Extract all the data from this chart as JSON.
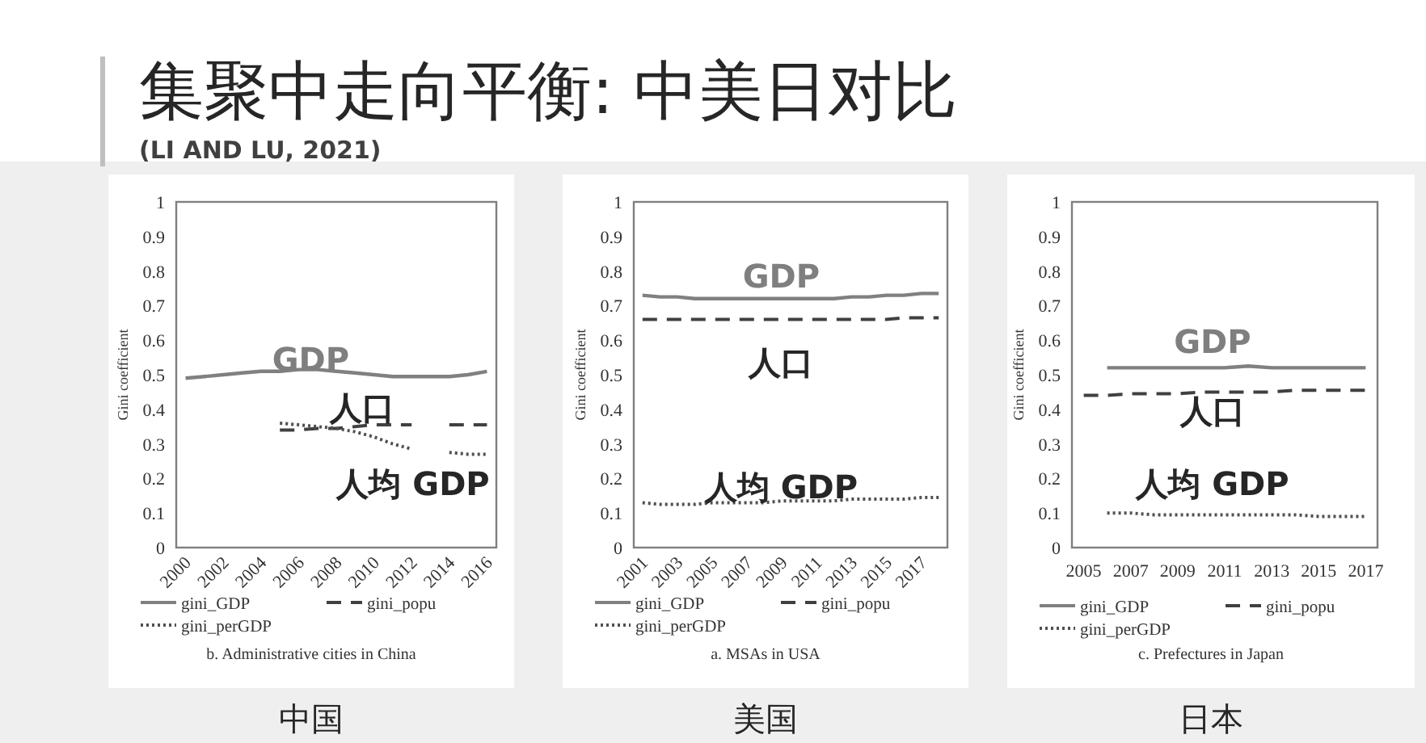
{
  "chart_data": [
    {
      "type": "other",
      "title": "集聚中走向平衡: 中美日对比",
      "subtitle": "(LI AND LU, 2021)"
    },
    {
      "type": "line",
      "title": "中国",
      "ylabel": "Gini coefficient",
      "ylim": [
        0,
        1
      ],
      "yticks": [
        0,
        0.1,
        0.2,
        0.3,
        0.4,
        0.5,
        0.6,
        0.7,
        0.8,
        0.9,
        1
      ],
      "legend": "bottom",
      "categories": [
        "2000",
        null,
        "2002",
        null,
        "2004",
        null,
        "2006",
        null,
        "2008",
        null,
        "2010",
        null,
        "2012",
        null,
        "2014",
        null,
        "2016"
      ],
      "series": [
        {
          "name": "gini_GDP",
          "color": "#808080",
          "line_style": "solid",
          "values": [
            0.49,
            0.495,
            0.5,
            0.505,
            0.51,
            0.51,
            0.515,
            0.515,
            0.51,
            0.505,
            0.5,
            0.495,
            0.495,
            0.495,
            0.495,
            0.5,
            0.51
          ]
        },
        {
          "name": "gini_popu",
          "color": "#404040",
          "line_style": "dashed",
          "values": [
            null,
            null,
            null,
            null,
            null,
            0.34,
            0.34,
            0.345,
            0.345,
            0.35,
            0.355,
            0.355,
            0.355,
            null,
            0.355,
            0.355,
            0.355
          ]
        },
        {
          "name": "gini_perGDP",
          "color": "#505050",
          "line_style": "dotted",
          "values": [
            null,
            null,
            null,
            null,
            null,
            0.36,
            0.355,
            0.35,
            0.345,
            0.335,
            0.32,
            0.3,
            0.285,
            null,
            0.275,
            0.27,
            0.27
          ]
        }
      ],
      "annotations": [
        "GDP",
        "人口",
        "人均 GDP",
        "b. Administrative cities in China"
      ]
    },
    {
      "type": "line",
      "title": "美国",
      "ylabel": "Gini coefficient",
      "ylim": [
        0,
        1
      ],
      "yticks": [
        0,
        0.1,
        0.2,
        0.3,
        0.4,
        0.5,
        0.6,
        0.7,
        0.8,
        0.9,
        1
      ],
      "legend": "bottom",
      "categories": [
        "2001",
        null,
        "2003",
        null,
        "2005",
        null,
        "2007",
        null,
        "2009",
        null,
        "2011",
        null,
        "2013",
        null,
        "2015",
        null,
        "2017",
        null
      ],
      "series": [
        {
          "name": "gini_GDP",
          "color": "#808080",
          "line_style": "solid",
          "values": [
            0.73,
            0.725,
            0.725,
            0.72,
            0.72,
            0.72,
            0.72,
            0.72,
            0.72,
            0.72,
            0.72,
            0.72,
            0.725,
            0.725,
            0.73,
            0.73,
            0.735,
            0.735
          ]
        },
        {
          "name": "gini_popu",
          "color": "#404040",
          "line_style": "dashed",
          "values": [
            0.66,
            0.66,
            0.66,
            0.66,
            0.66,
            0.66,
            0.66,
            0.66,
            0.66,
            0.66,
            0.66,
            0.66,
            0.66,
            0.66,
            0.66,
            0.665,
            0.665,
            0.665
          ]
        },
        {
          "name": "gini_perGDP",
          "color": "#505050",
          "line_style": "dotted",
          "values": [
            0.13,
            0.125,
            0.125,
            0.125,
            0.13,
            0.13,
            0.13,
            0.13,
            0.135,
            0.135,
            0.135,
            0.135,
            0.14,
            0.14,
            0.14,
            0.14,
            0.145,
            0.145
          ]
        }
      ],
      "annotations": [
        "GDP",
        "人口",
        "人均 GDP",
        "a. MSAs in USA"
      ]
    },
    {
      "type": "line",
      "title": "日本",
      "ylabel": "Gini coefficient",
      "ylim": [
        0,
        1
      ],
      "yticks": [
        0,
        0.1,
        0.2,
        0.3,
        0.4,
        0.5,
        0.6,
        0.7,
        0.8,
        0.9,
        1
      ],
      "legend": "bottom",
      "categories": [
        "2005",
        null,
        "2007",
        null,
        "2009",
        null,
        "2011",
        null,
        "2013",
        null,
        "2015",
        null,
        "2017"
      ],
      "series": [
        {
          "name": "gini_GDP",
          "color": "#808080",
          "line_style": "solid",
          "values": [
            null,
            0.52,
            0.52,
            0.52,
            0.52,
            0.52,
            0.52,
            0.525,
            0.52,
            0.52,
            0.52,
            0.52,
            0.52
          ]
        },
        {
          "name": "gini_popu",
          "color": "#404040",
          "line_style": "dashed",
          "values": [
            0.44,
            0.44,
            0.445,
            0.445,
            0.445,
            0.45,
            0.45,
            0.45,
            0.45,
            0.455,
            0.455,
            0.455,
            0.455
          ]
        },
        {
          "name": "gini_perGDP",
          "color": "#505050",
          "line_style": "dotted",
          "values": [
            null,
            0.1,
            0.1,
            0.095,
            0.095,
            0.095,
            0.095,
            0.095,
            0.095,
            0.095,
            0.09,
            0.09,
            0.09
          ]
        }
      ],
      "annotations": [
        "GDP",
        "人口",
        "人均 GDP",
        "c. Prefectures in Japan"
      ]
    }
  ]
}
